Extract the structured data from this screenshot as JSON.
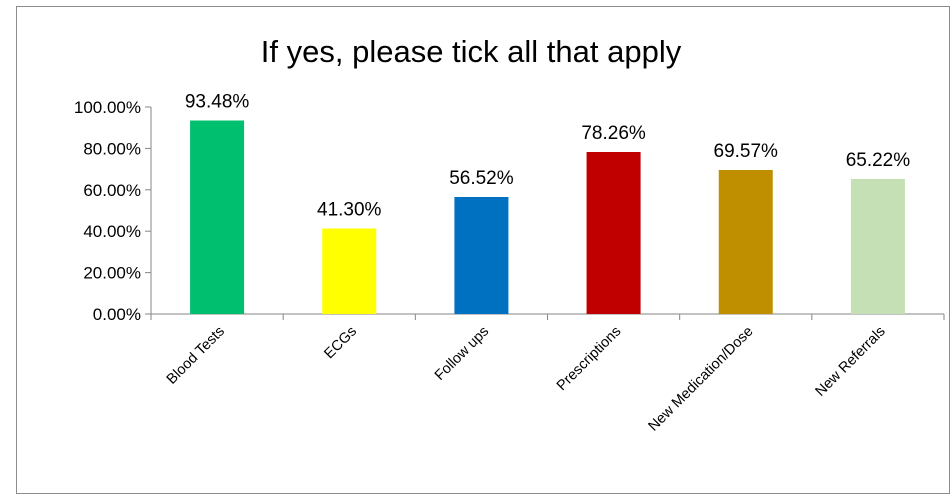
{
  "chart_data": {
    "type": "bar",
    "title": "If yes, please tick all that apply",
    "xlabel": "",
    "ylabel": "",
    "categories": [
      "Blood Tests",
      "ECGs",
      "Follow ups",
      "Prescriptions",
      "New Medication/Dose",
      "New Referrals"
    ],
    "values": [
      93.48,
      41.3,
      56.52,
      78.26,
      69.57,
      65.22
    ],
    "data_labels": [
      "93.48%",
      "41.30%",
      "56.52%",
      "78.26%",
      "69.57%",
      "65.22%"
    ],
    "colors": [
      "#00BF6F",
      "#FFFF00",
      "#0070C0",
      "#C00000",
      "#BF8F00",
      "#C5E0B4"
    ],
    "ylim": [
      0,
      100
    ],
    "yticks": [
      0,
      20,
      40,
      60,
      80,
      100
    ],
    "ytick_labels": [
      "0.00%",
      "20.00%",
      "40.00%",
      "60.00%",
      "80.00%",
      "100.00%"
    ],
    "grid": false,
    "legend": "none"
  }
}
